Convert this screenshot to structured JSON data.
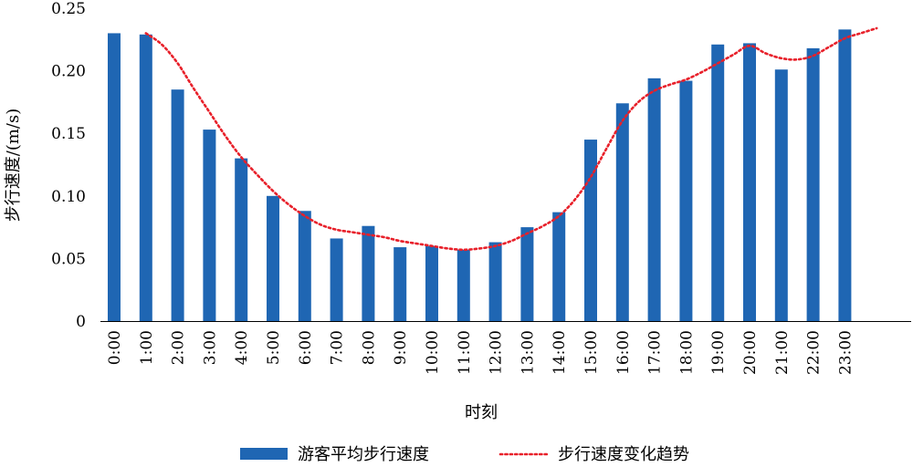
{
  "chart_data": {
    "type": "bar",
    "categories": [
      "0:00",
      "1:00",
      "2:00",
      "3:00",
      "4:00",
      "5:00",
      "6:00",
      "7:00",
      "8:00",
      "9:00",
      "10:00",
      "11:00",
      "12:00",
      "13:00",
      "14:00",
      "15:00",
      "16:00",
      "17:00",
      "18:00",
      "19:00",
      "20:00",
      "21:00",
      "22:00",
      "23:00"
    ],
    "series": [
      {
        "name": "游客平均步行速度",
        "kind": "bar",
        "color": "#1f66b3",
        "values": [
          0.23,
          0.229,
          0.185,
          0.153,
          0.13,
          0.1,
          0.088,
          0.066,
          0.076,
          0.059,
          0.06,
          0.057,
          0.063,
          0.075,
          0.087,
          0.145,
          0.174,
          0.194,
          0.192,
          0.221,
          0.222,
          0.201,
          0.218,
          0.233
        ]
      },
      {
        "name": "步行速度变化趋势",
        "kind": "line",
        "style": "dotted",
        "color": "#e8202a",
        "x": [
          1.0,
          1.5,
          2.0,
          2.5,
          3.0,
          3.5,
          4.0,
          4.5,
          5.0,
          5.5,
          6.0,
          6.5,
          7.0,
          7.5,
          8.0,
          8.5,
          9.0,
          9.5,
          10.0,
          10.5,
          11.0,
          11.5,
          12.0,
          12.5,
          13.0,
          13.5,
          14.0,
          14.5,
          15.0,
          15.5,
          16.0,
          16.5,
          17.0,
          17.5,
          18.0,
          18.5,
          19.0,
          19.5,
          20.0,
          20.5,
          21.0,
          21.5,
          22.0,
          22.5,
          23.0,
          23.5,
          24.0
        ],
        "values": [
          0.23,
          0.221,
          0.206,
          0.186,
          0.167,
          0.148,
          0.131,
          0.117,
          0.104,
          0.093,
          0.084,
          0.077,
          0.073,
          0.071,
          0.069,
          0.067,
          0.064,
          0.062,
          0.06,
          0.058,
          0.057,
          0.058,
          0.06,
          0.064,
          0.07,
          0.076,
          0.084,
          0.097,
          0.115,
          0.138,
          0.16,
          0.175,
          0.184,
          0.189,
          0.193,
          0.199,
          0.206,
          0.213,
          0.22,
          0.214,
          0.21,
          0.209,
          0.212,
          0.219,
          0.226,
          0.23,
          0.234
        ]
      }
    ],
    "title": "",
    "xlabel": "时刻",
    "ylabel": "步行速度/(m/s)",
    "ylim": [
      0,
      0.25
    ],
    "yticks": [
      "0",
      "0.05",
      "0.10",
      "0.15",
      "0.20",
      "0.25"
    ],
    "grid": false,
    "legend_position": "bottom"
  }
}
